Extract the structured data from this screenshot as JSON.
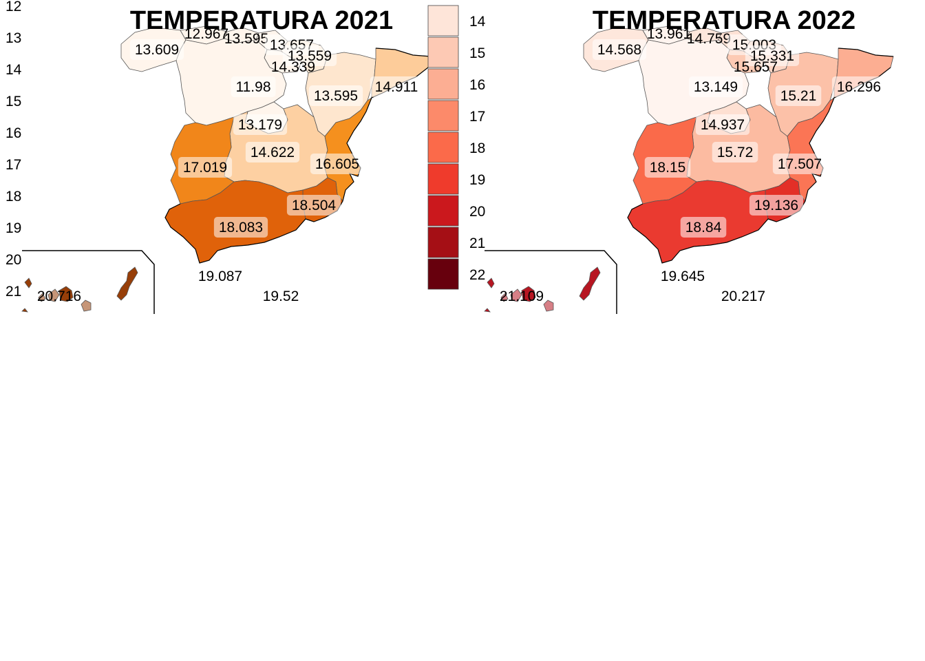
{
  "maps": [
    {
      "title": "TEMPERATURA 2021",
      "palette": "oranges",
      "regions": [
        {
          "id": "galicia",
          "value": "13.609"
        },
        {
          "id": "asturias",
          "value": "12.967"
        },
        {
          "id": "cantabria",
          "value": "13.595"
        },
        {
          "id": "pais-vasco",
          "value": "13.657"
        },
        {
          "id": "navarra",
          "value": "13.559"
        },
        {
          "id": "la-rioja",
          "value": "14.339"
        },
        {
          "id": "castilla-leon",
          "value": "11.98"
        },
        {
          "id": "aragon",
          "value": "13.595"
        },
        {
          "id": "cataluna",
          "value": "14.911"
        },
        {
          "id": "madrid",
          "value": "13.179"
        },
        {
          "id": "castilla-la-mancha",
          "value": "14.622"
        },
        {
          "id": "extremadura",
          "value": "17.019"
        },
        {
          "id": "valencia",
          "value": "16.605"
        },
        {
          "id": "murcia",
          "value": "18.504"
        },
        {
          "id": "andalucia",
          "value": "18.083"
        },
        {
          "id": "ceuta",
          "value": "19.087"
        },
        {
          "id": "melilla",
          "value": "19.52"
        },
        {
          "id": "canarias",
          "value": "20.716"
        }
      ],
      "fills": {
        "galicia": "#fff5ec",
        "asturias": "#fff5ec",
        "cantabria": "#fff5ec",
        "pais-vasco": "#fff5ec",
        "navarra": "#feebd7",
        "la-rioja": "#fff5ec",
        "castilla-leon": "#fff5ec",
        "aragon": "#fee6ce",
        "cataluna": "#fdcc9a",
        "madrid": "#fff5ec",
        "castilla-la-mancha": "#fdd0a2",
        "extremadura": "#f1861a",
        "valencia": "#f5901e",
        "murcia": "#e0620a",
        "andalucia": "#e0620a",
        "canarias": "#973e08"
      }
    },
    {
      "title": "TEMPERATURA 2022",
      "palette": "reds",
      "regions": [
        {
          "id": "galicia",
          "value": "14.568"
        },
        {
          "id": "asturias",
          "value": "13.961"
        },
        {
          "id": "cantabria",
          "value": "14.759"
        },
        {
          "id": "pais-vasco",
          "value": "15.003"
        },
        {
          "id": "navarra",
          "value": "15.331"
        },
        {
          "id": "la-rioja",
          "value": "15.657"
        },
        {
          "id": "castilla-leon",
          "value": "13.149"
        },
        {
          "id": "aragon",
          "value": "15.21"
        },
        {
          "id": "cataluna",
          "value": "16.296"
        },
        {
          "id": "madrid",
          "value": "14.937"
        },
        {
          "id": "castilla-la-mancha",
          "value": "15.72"
        },
        {
          "id": "extremadura",
          "value": "18.15"
        },
        {
          "id": "valencia",
          "value": "17.507"
        },
        {
          "id": "murcia",
          "value": "19.136"
        },
        {
          "id": "andalucia",
          "value": "18.84"
        },
        {
          "id": "ceuta",
          "value": "19.645"
        },
        {
          "id": "melilla",
          "value": "20.217"
        },
        {
          "id": "canarias",
          "value": "21.109"
        }
      ],
      "fills": {
        "galicia": "#fee7dc",
        "asturias": "#fff4ef",
        "cantabria": "#fee7dc",
        "pais-vasco": "#fee2d5",
        "navarra": "#fdd5c4",
        "la-rioja": "#fdcab4",
        "castilla-leon": "#fff4ef",
        "aragon": "#fcc1a8",
        "cataluna": "#fcae92",
        "madrid": "#fee0d2",
        "castilla-la-mancha": "#fcbba1",
        "extremadura": "#fa6a4a",
        "valencia": "#fb7555",
        "murcia": "#e32f27",
        "andalucia": "#ea3a30",
        "canarias": "#b71622"
      }
    }
  ],
  "y_axis_ticks": [
    "12",
    "13",
    "14",
    "15",
    "16",
    "17",
    "18",
    "19",
    "20",
    "21"
  ],
  "legend": {
    "labels": [
      "14",
      "15",
      "16",
      "17",
      "18",
      "19",
      "20",
      "21",
      "22"
    ],
    "colors": [
      "#fee5d9",
      "#fdc9b4",
      "#fcae93",
      "#fc8a6a",
      "#fb6a4a",
      "#ef3b2c",
      "#cb181d",
      "#a50f15",
      "#67000d"
    ]
  }
}
